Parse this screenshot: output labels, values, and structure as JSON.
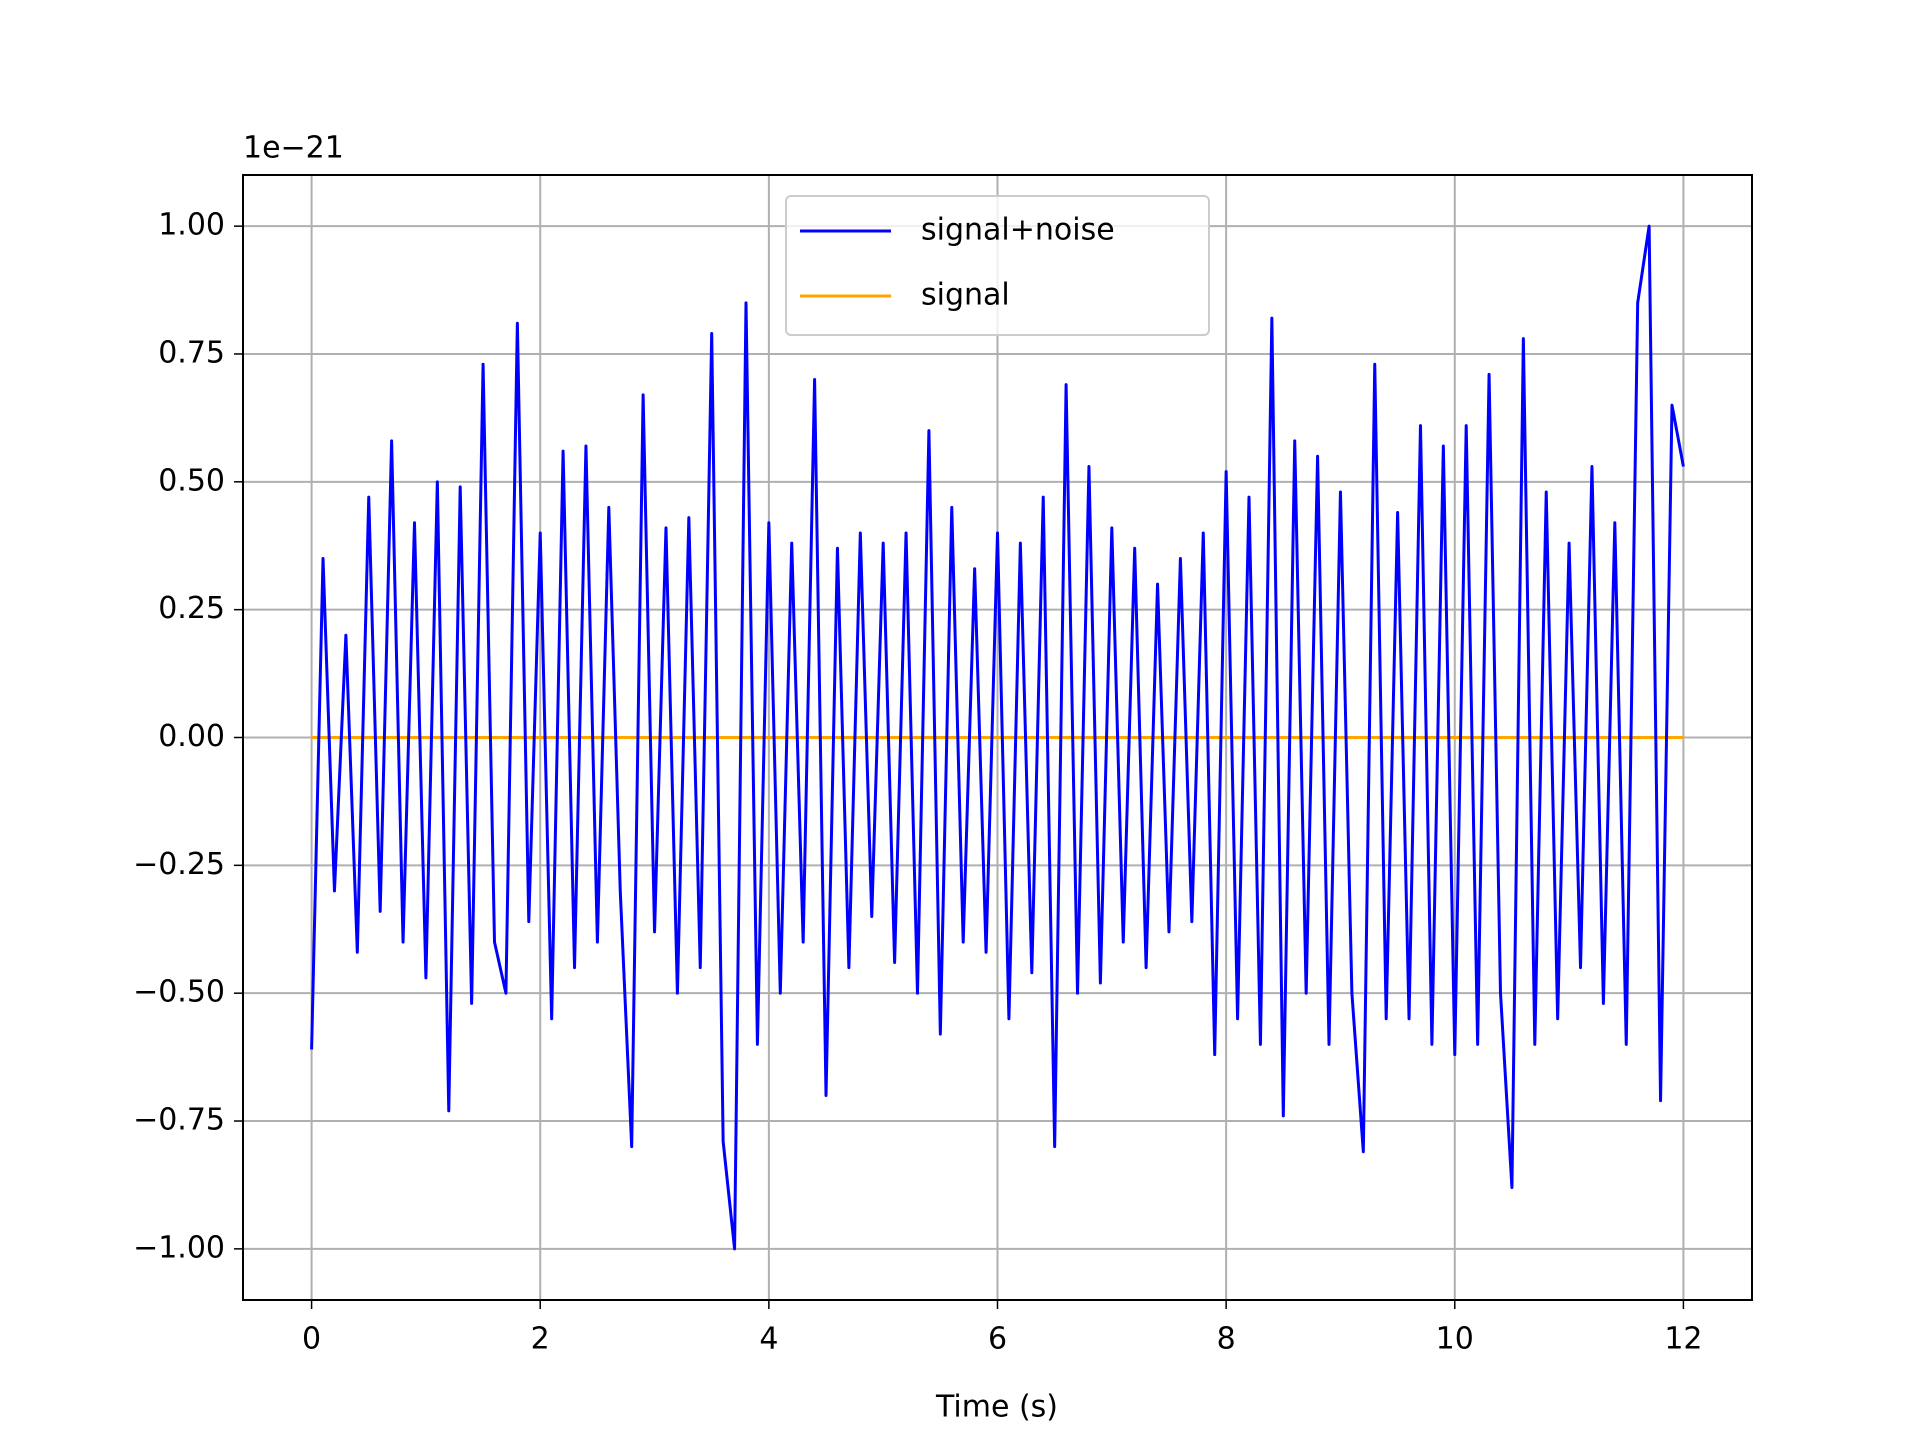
{
  "chart_data": {
    "type": "line",
    "x_label": "Time (s)",
    "y_offset_text": "1e−21",
    "x": [
      0,
      0.1,
      0.2,
      0.3,
      0.4,
      0.5,
      0.6,
      0.7,
      0.8,
      0.9,
      1,
      1.1,
      1.2,
      1.3,
      1.4,
      1.5,
      1.6,
      1.7,
      1.8,
      1.9,
      2,
      2.1,
      2.2,
      2.3,
      2.4,
      2.5,
      2.6,
      2.7,
      2.8,
      2.9,
      3,
      3.1,
      3.2,
      3.3,
      3.4,
      3.5,
      3.6,
      3.7,
      3.8,
      3.9,
      4,
      4.1,
      4.2,
      4.3,
      4.4,
      4.5,
      4.6,
      4.7,
      4.8,
      4.9,
      5,
      5.1,
      5.2,
      5.3,
      5.4,
      5.5,
      5.6,
      5.7,
      5.8,
      5.9,
      6,
      6.1,
      6.2,
      6.3,
      6.4,
      6.5,
      6.6,
      6.7,
      6.8,
      6.9,
      7,
      7.1,
      7.2,
      7.3,
      7.4,
      7.5,
      7.6,
      7.7,
      7.8,
      7.9,
      8,
      8.1,
      8.2,
      8.3,
      8.4,
      8.5,
      8.6,
      8.7,
      8.8,
      8.9,
      9,
      9.1,
      9.2,
      9.3,
      9.4,
      9.5,
      9.6,
      9.7,
      9.8,
      9.9,
      10,
      10.1,
      10.2,
      10.3,
      10.4,
      10.5,
      10.6,
      10.7,
      10.8,
      10.9,
      11,
      11.1,
      11.2,
      11.3,
      11.4,
      11.5,
      11.6,
      11.7,
      11.8,
      11.9,
      12
    ],
    "series": [
      {
        "name": "signal+noise",
        "color": "#0000ff",
        "values": [
          -0.61,
          0.35,
          -0.3,
          0.2,
          -0.42,
          0.47,
          -0.34,
          0.58,
          -0.4,
          0.42,
          -0.47,
          0.5,
          -0.73,
          0.49,
          -0.52,
          0.73,
          -0.4,
          -0.5,
          0.81,
          -0.36,
          0.4,
          -0.55,
          0.56,
          -0.45,
          0.57,
          -0.4,
          0.45,
          -0.3,
          -0.8,
          0.67,
          -0.38,
          0.41,
          -0.5,
          0.43,
          -0.45,
          0.79,
          -0.79,
          -1.0,
          0.85,
          -0.6,
          0.42,
          -0.5,
          0.38,
          -0.4,
          0.7,
          -0.7,
          0.37,
          -0.45,
          0.4,
          -0.35,
          0.38,
          -0.44,
          0.4,
          -0.5,
          0.6,
          -0.58,
          0.45,
          -0.4,
          0.33,
          -0.42,
          0.4,
          -0.55,
          0.38,
          -0.46,
          0.47,
          -0.8,
          0.69,
          -0.5,
          0.53,
          -0.48,
          0.41,
          -0.4,
          0.37,
          -0.45,
          0.3,
          -0.38,
          0.35,
          -0.36,
          0.4,
          -0.62,
          0.52,
          -0.55,
          0.47,
          -0.6,
          0.82,
          -0.74,
          0.58,
          -0.5,
          0.55,
          -0.6,
          0.48,
          -0.5,
          -0.81,
          0.73,
          -0.55,
          0.44,
          -0.55,
          0.61,
          -0.6,
          0.57,
          -0.62,
          0.61,
          -0.6,
          0.71,
          -0.5,
          -0.88,
          0.78,
          -0.6,
          0.48,
          -0.55,
          0.38,
          -0.45,
          0.53,
          -0.52,
          0.42,
          -0.6,
          0.85,
          1.0,
          -0.71,
          0.65,
          0.53
        ]
      },
      {
        "name": "signal",
        "color": "#ffa500",
        "values": [
          0,
          0,
          0,
          0,
          0,
          0,
          0,
          0,
          0,
          0,
          0,
          0,
          0,
          0,
          0,
          0,
          0,
          0,
          0,
          0,
          0,
          0,
          0,
          0,
          0,
          0,
          0,
          0,
          0,
          0,
          0,
          0,
          0,
          0,
          0,
          0,
          0,
          0,
          0,
          0,
          0,
          0,
          0,
          0,
          0,
          0,
          0,
          0,
          0,
          0,
          0,
          0,
          0,
          0,
          0,
          0,
          0,
          0,
          0,
          0,
          0,
          0,
          0,
          0,
          0,
          0,
          0,
          0,
          0,
          0,
          0,
          0,
          0,
          0,
          0,
          0,
          0,
          0,
          0,
          0,
          0,
          0,
          0,
          0,
          0,
          0,
          0,
          0,
          0,
          0,
          0,
          0,
          0,
          0,
          0,
          0,
          0,
          0,
          0,
          0,
          0,
          0,
          0,
          0,
          0,
          0,
          0,
          0,
          0,
          0,
          0,
          0,
          0,
          0,
          0,
          0,
          0,
          0,
          0,
          0,
          0
        ]
      }
    ],
    "xlim": [
      -0.6,
      12.6
    ],
    "xticks": [
      0,
      2,
      4,
      6,
      8,
      10,
      12
    ],
    "ylim": [
      -1.1,
      1.1
    ],
    "yticks": [
      {
        "value": -1,
        "label": "−1.00"
      },
      {
        "value": -0.75,
        "label": "−0.75"
      },
      {
        "value": -0.5,
        "label": "−0.50"
      },
      {
        "value": -0.25,
        "label": "−0.25"
      },
      {
        "value": 0,
        "label": "0.00"
      },
      {
        "value": 0.25,
        "label": "0.25"
      },
      {
        "value": 0.5,
        "label": "0.50"
      },
      {
        "value": 0.75,
        "label": "0.75"
      },
      {
        "value": 1,
        "label": "1.00"
      }
    ],
    "grid": true,
    "legend": "upper center"
  }
}
